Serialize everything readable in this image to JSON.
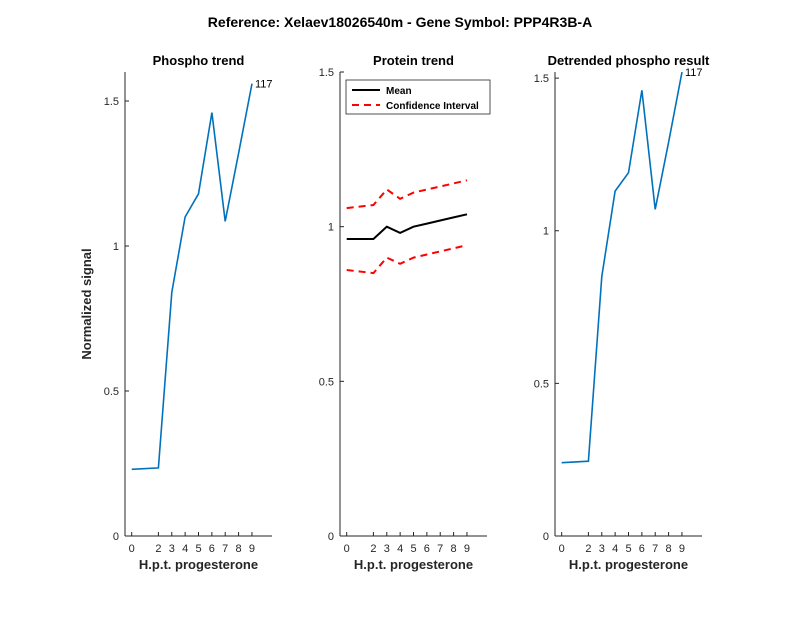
{
  "figure": {
    "suptitle": "Reference:  Xelaev18026540m - Gene Symbol:  PPP4R3B-A"
  },
  "colors": {
    "blue": "#0072BD",
    "black": "#000000",
    "red": "#FF0000"
  },
  "chart_data": [
    {
      "type": "line",
      "title": "Phospho trend",
      "xlabel": "H.p.t. progesterone",
      "ylabel": "Normalized signal",
      "categories": [
        "0",
        "2",
        "3",
        "4",
        "5",
        "6",
        "7",
        "8",
        "9"
      ],
      "ylim": [
        0,
        1.6
      ],
      "yticks": [
        0,
        0.5,
        1,
        1.5
      ],
      "ytick_labels": [
        "0",
        "0.5",
        "1",
        "1.5"
      ],
      "series": [
        {
          "values": [
            0.23,
            0.235,
            0.84,
            1.1,
            1.18,
            1.46,
            1.085,
            1.32,
            1.56
          ],
          "color": "#0072BD",
          "style": "solid"
        }
      ],
      "end_label": "117"
    },
    {
      "type": "line",
      "title": "Protein trend",
      "xlabel": "H.p.t. progesterone",
      "ylabel": "",
      "categories": [
        "0",
        "2",
        "3",
        "4",
        "5",
        "6",
        "7",
        "8",
        "9"
      ],
      "ylim": [
        0,
        1.5
      ],
      "yticks": [
        0,
        0.5,
        1,
        1.5
      ],
      "ytick_labels": [
        "0",
        "0.5",
        "1",
        "1.5"
      ],
      "legend": {
        "placement": "top-left",
        "entries": [
          "Mean",
          "Confidence Interval"
        ]
      },
      "series": [
        {
          "name": "Mean",
          "values": [
            0.96,
            0.96,
            1.0,
            0.98,
            1.0,
            1.01,
            1.02,
            1.03,
            1.04
          ],
          "color": "#000000",
          "style": "solid"
        },
        {
          "name": "Confidence Interval",
          "values": [
            1.06,
            1.07,
            1.12,
            1.09,
            1.11,
            1.12,
            1.13,
            1.14,
            1.15
          ],
          "color": "#FF0000",
          "style": "dashed"
        },
        {
          "values": [
            0.86,
            0.85,
            0.9,
            0.88,
            0.9,
            0.91,
            0.92,
            0.93,
            0.94
          ],
          "color": "#FF0000",
          "style": "dashed"
        }
      ]
    },
    {
      "type": "line",
      "title": "Detrended phospho result",
      "xlabel": "H.p.t. progesterone",
      "ylabel": "",
      "categories": [
        "0",
        "2",
        "3",
        "4",
        "5",
        "6",
        "7",
        "8",
        "9"
      ],
      "ylim": [
        0,
        1.52
      ],
      "yticks": [
        0,
        0.5,
        1,
        1.5
      ],
      "ytick_labels": [
        "0",
        "0.5",
        "1",
        "1.5"
      ],
      "series": [
        {
          "values": [
            0.24,
            0.245,
            0.85,
            1.13,
            1.19,
            1.46,
            1.07,
            1.29,
            1.52
          ],
          "color": "#0072BD",
          "style": "solid"
        }
      ],
      "end_label": "117"
    }
  ]
}
